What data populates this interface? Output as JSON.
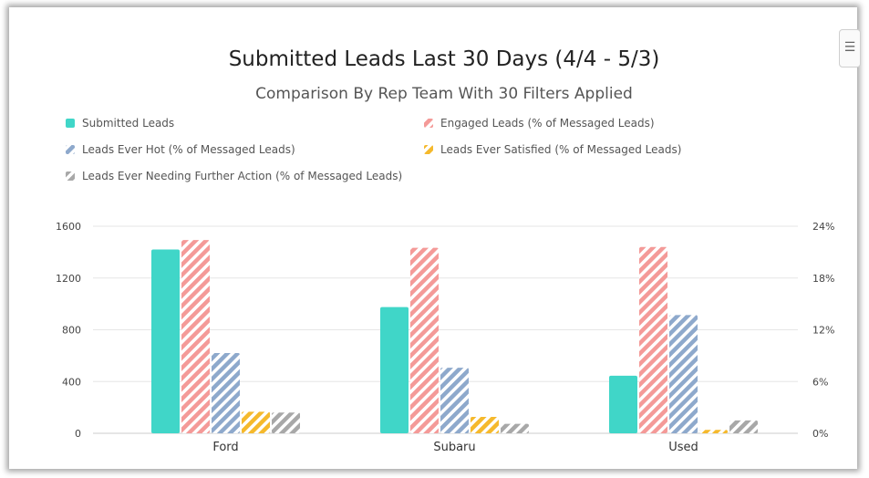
{
  "chart_data": {
    "type": "bar",
    "title": "Submitted Leads Last 30 Days (4/4 - 5/3)",
    "subtitle": "Comparison By Rep Team With 30 Filters Applied",
    "categories": [
      "Ford",
      "Subaru",
      "Used"
    ],
    "left_axis": {
      "ylim": [
        0,
        1600
      ],
      "ticks": [
        "0",
        "400",
        "800",
        "1200",
        "1600"
      ]
    },
    "right_axis": {
      "ylim": [
        0,
        24
      ],
      "ticks": [
        "0%",
        "6%",
        "12%",
        "18%",
        "24%"
      ]
    },
    "grid": true,
    "legend_position": "top",
    "series": [
      {
        "name": "Submitted Leads",
        "axis": "left",
        "color": "#40d6c8",
        "pattern": "solid",
        "values": [
          1420,
          975,
          445
        ]
      },
      {
        "name": "Engaged Leads (% of Messaged Leads)",
        "axis": "right",
        "color": "#f49a98",
        "pattern": "hatched",
        "values": [
          22.4,
          21.5,
          21.6
        ]
      },
      {
        "name": "Leads Ever Hot (% of Messaged Leads)",
        "axis": "right",
        "color": "#8ea9cc",
        "pattern": "hatched",
        "values": [
          9.3,
          7.6,
          13.7
        ]
      },
      {
        "name": "Leads Ever Satisfied (% of Messaged Leads)",
        "axis": "right",
        "color": "#f5b92c",
        "pattern": "hatched",
        "values": [
          2.5,
          1.9,
          0.4
        ]
      },
      {
        "name": "Leads Ever Needing Further Action (% of Messaged Leads)",
        "axis": "right",
        "color": "#a8a8a8",
        "pattern": "hatched",
        "values": [
          2.4,
          1.1,
          1.5
        ]
      }
    ]
  }
}
